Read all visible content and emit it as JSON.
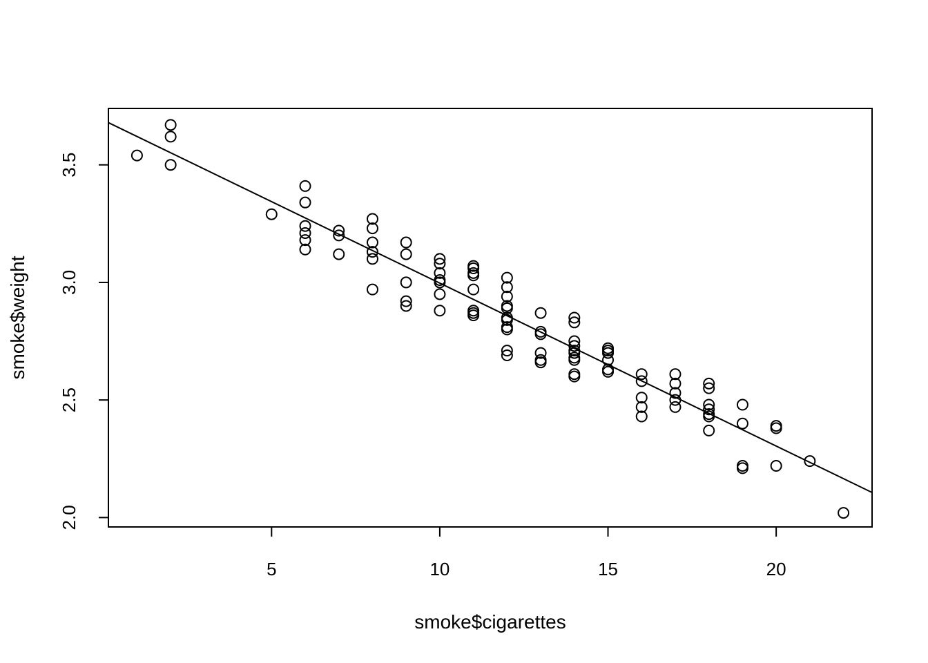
{
  "chart_data": {
    "type": "scatter",
    "title": "",
    "xlabel": "smoke$cigarettes",
    "ylabel": "smoke$weight",
    "xlim": [
      0.15,
      22.85
    ],
    "ylim": [
      1.96,
      3.74
    ],
    "x_ticks": [
      5,
      10,
      15,
      20
    ],
    "y_ticks": [
      2.0,
      2.5,
      3.0,
      3.5
    ],
    "x_tick_labels": [
      "5",
      "10",
      "15",
      "20"
    ],
    "y_tick_labels": [
      "2.0",
      "2.5",
      "3.0",
      "3.5"
    ],
    "grid": false,
    "legend": "none",
    "point_style": "open-circle",
    "line_color": "#000000",
    "regression_line": {
      "intercept": 3.69,
      "slope": -0.0693
    },
    "points": [
      [
        1,
        3.54
      ],
      [
        2,
        3.67
      ],
      [
        2,
        3.62
      ],
      [
        2,
        3.5
      ],
      [
        5,
        3.29
      ],
      [
        6,
        3.41
      ],
      [
        6,
        3.34
      ],
      [
        6,
        3.24
      ],
      [
        6,
        3.21
      ],
      [
        6,
        3.18
      ],
      [
        6,
        3.14
      ],
      [
        7,
        3.22
      ],
      [
        7,
        3.2
      ],
      [
        7,
        3.12
      ],
      [
        8,
        3.27
      ],
      [
        8,
        3.23
      ],
      [
        8,
        3.17
      ],
      [
        8,
        3.13
      ],
      [
        8,
        3.1
      ],
      [
        8,
        2.97
      ],
      [
        9,
        3.17
      ],
      [
        9,
        3.12
      ],
      [
        9,
        3.0
      ],
      [
        9,
        2.92
      ],
      [
        9,
        2.9
      ],
      [
        10,
        3.1
      ],
      [
        10,
        3.08
      ],
      [
        10,
        3.04
      ],
      [
        10,
        3.01
      ],
      [
        10,
        3.0
      ],
      [
        10,
        2.95
      ],
      [
        10,
        2.88
      ],
      [
        11,
        3.07
      ],
      [
        11,
        3.06
      ],
      [
        11,
        3.04
      ],
      [
        11,
        3.03
      ],
      [
        11,
        2.97
      ],
      [
        11,
        2.88
      ],
      [
        11,
        2.87
      ],
      [
        11,
        2.86
      ],
      [
        12,
        3.02
      ],
      [
        12,
        2.98
      ],
      [
        12,
        2.94
      ],
      [
        12,
        2.9
      ],
      [
        12,
        2.89
      ],
      [
        12,
        2.85
      ],
      [
        12,
        2.84
      ],
      [
        12,
        2.81
      ],
      [
        12,
        2.8
      ],
      [
        12,
        2.71
      ],
      [
        12,
        2.69
      ],
      [
        13,
        2.87
      ],
      [
        13,
        2.79
      ],
      [
        13,
        2.78
      ],
      [
        13,
        2.7
      ],
      [
        13,
        2.67
      ],
      [
        13,
        2.66
      ],
      [
        14,
        2.85
      ],
      [
        14,
        2.83
      ],
      [
        14,
        2.75
      ],
      [
        14,
        2.73
      ],
      [
        14,
        2.71
      ],
      [
        14,
        2.7
      ],
      [
        14,
        2.68
      ],
      [
        14,
        2.67
      ],
      [
        14,
        2.61
      ],
      [
        14,
        2.6
      ],
      [
        15,
        2.72
      ],
      [
        15,
        2.71
      ],
      [
        15,
        2.7
      ],
      [
        15,
        2.67
      ],
      [
        15,
        2.63
      ],
      [
        15,
        2.62
      ],
      [
        16,
        2.61
      ],
      [
        16,
        2.58
      ],
      [
        16,
        2.51
      ],
      [
        16,
        2.47
      ],
      [
        16,
        2.43
      ],
      [
        17,
        2.61
      ],
      [
        17,
        2.57
      ],
      [
        17,
        2.53
      ],
      [
        17,
        2.5
      ],
      [
        17,
        2.47
      ],
      [
        18,
        2.57
      ],
      [
        18,
        2.55
      ],
      [
        18,
        2.48
      ],
      [
        18,
        2.46
      ],
      [
        18,
        2.44
      ],
      [
        18,
        2.43
      ],
      [
        18,
        2.37
      ],
      [
        19,
        2.48
      ],
      [
        19,
        2.4
      ],
      [
        19,
        2.22
      ],
      [
        19,
        2.21
      ],
      [
        20,
        2.39
      ],
      [
        20,
        2.38
      ],
      [
        20,
        2.22
      ],
      [
        21,
        2.24
      ],
      [
        22,
        2.02
      ]
    ]
  }
}
